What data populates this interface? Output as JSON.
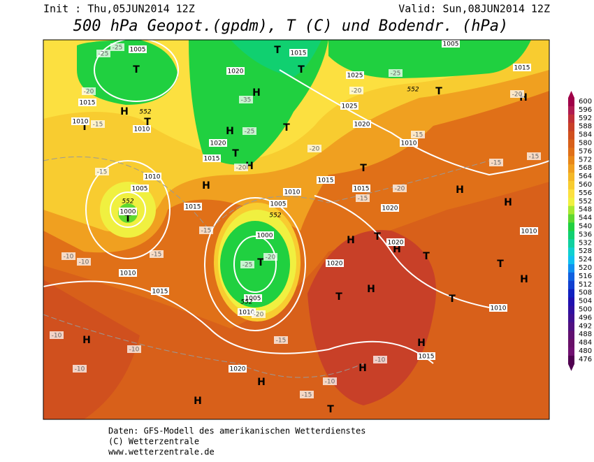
{
  "header": {
    "init": "Init : Thu,05JUN2014 12Z",
    "valid": "Valid: Sun,08JUN2014 12Z",
    "title": "500 hPa Geopot.(gpdm), T (C) und Bodendr. (hPa)"
  },
  "legend": {
    "levels": [
      600,
      596,
      592,
      588,
      584,
      580,
      576,
      572,
      568,
      564,
      560,
      556,
      552,
      548,
      544,
      540,
      536,
      532,
      528,
      524,
      520,
      516,
      512,
      508,
      504,
      500,
      496,
      492,
      488,
      484,
      480,
      476
    ],
    "colors": [
      "#a00048",
      "#b01c50",
      "#c03038",
      "#c84028",
      "#d0501e",
      "#d8601a",
      "#e07018",
      "#e88818",
      "#f0a020",
      "#f4b828",
      "#f8cc30",
      "#fce040",
      "#f0f040",
      "#a8e830",
      "#60d830",
      "#20d040",
      "#10d070",
      "#10d0a0",
      "#10d0d0",
      "#10c0f0",
      "#1090f0",
      "#1060e0",
      "#1040d0",
      "#1020c0",
      "#2010b0",
      "#3010a0",
      "#401090",
      "#501080",
      "#601070",
      "#681068",
      "#701070",
      "#500050"
    ]
  },
  "map": {
    "labels": [
      "H",
      "H",
      "H",
      "H",
      "H",
      "H",
      "H",
      "H",
      "H",
      "H",
      "H",
      "H",
      "H",
      "H",
      "H",
      "H",
      "H",
      "T",
      "T",
      "T",
      "T",
      "T",
      "T",
      "T",
      "T",
      "T",
      "T",
      "T",
      "T",
      "T",
      "T",
      "T",
      "T",
      "T",
      "1005",
      "1015",
      "1020",
      "1025",
      "1025",
      "1020",
      "1015",
      "1010",
      "1010",
      "1020",
      "1015",
      "1010",
      "1005",
      "1000",
      "1010",
      "1015",
      "1005",
      "1015",
      "1015",
      "1020",
      "1010",
      "1000",
      "1020",
      "1020",
      "1010",
      "1015",
      "1005",
      "1010",
      "1015",
      "1010",
      "1010",
      "1015",
      "1005",
      "1020",
      "-25",
      "-25",
      "-20",
      "-15",
      "-15",
      "-15",
      "-15",
      "-10",
      "-10",
      "-10",
      "-10",
      "-10",
      "-25",
      "-20",
      "-20",
      "-20",
      "-35",
      "-25",
      "-20",
      "-15",
      "-15",
      "-15",
      "-20",
      "-20",
      "-25",
      "-10",
      "-10",
      "-15",
      "-15",
      "-20",
      "-15",
      "552",
      "552",
      "552",
      "552",
      "552"
    ]
  },
  "footer": {
    "line1": "Daten: GFS-Modell des amerikanischen Wetterdienstes",
    "line2": "(C) Wetterzentrale",
    "line3": "www.wetterzentrale.de"
  }
}
